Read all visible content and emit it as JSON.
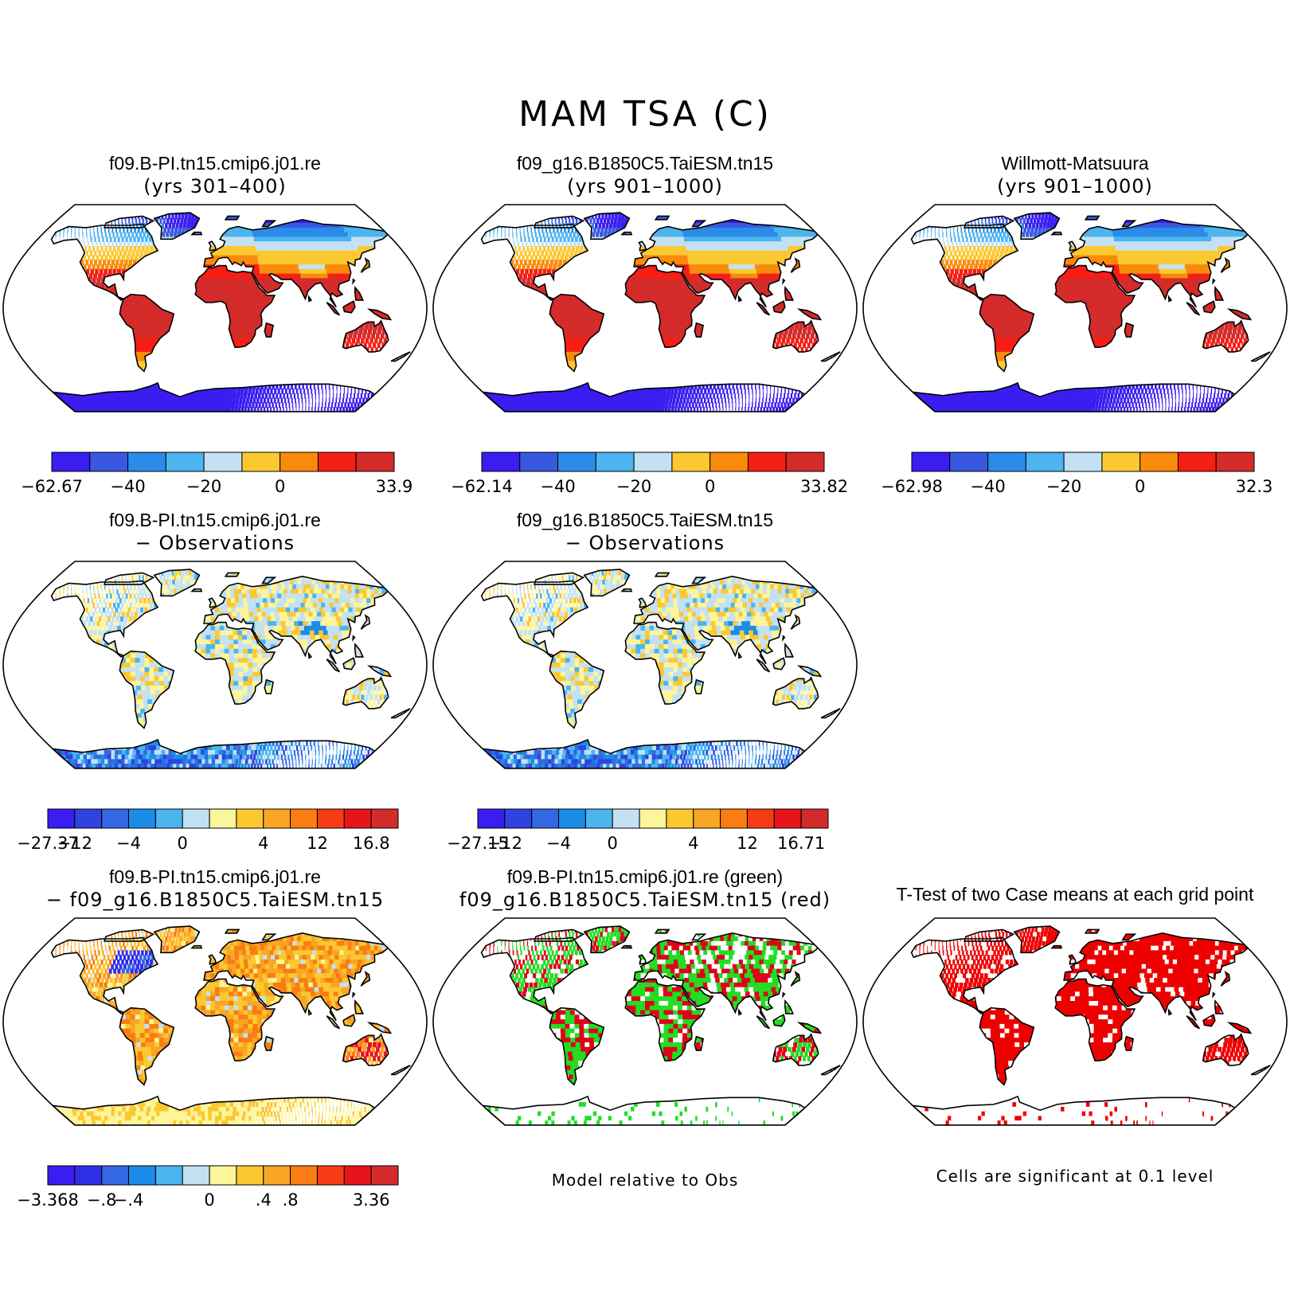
{
  "title": "MAM TSA (C)",
  "panels": [
    {
      "id": "p1",
      "title_line1": "f09.B-PI.tn15.cmip6.j01.re",
      "title_line2": "(yrs 301–400)",
      "style": "abs",
      "colorbar": {
        "colors": [
          "#3a1df0",
          "#3958e0",
          "#2c8be8",
          "#4cb4ee",
          "#c3e1f3",
          "#fbc831",
          "#f98b0c",
          "#f61f14",
          "#d42b2b"
        ],
        "labels": [
          "−62.67",
          "−40",
          "−20",
          "0",
          "33.9"
        ],
        "label_bins": [
          0,
          2,
          4,
          6,
          9
        ]
      }
    },
    {
      "id": "p2",
      "title_line1": "f09_g16.B1850C5.TaiESM.tn15",
      "title_line2": "(yrs 901–1000)",
      "style": "abs",
      "colorbar": {
        "colors": [
          "#3a1df0",
          "#3958e0",
          "#2c8be8",
          "#4cb4ee",
          "#c3e1f3",
          "#fbc831",
          "#f98b0c",
          "#f61f14",
          "#d42b2b"
        ],
        "labels": [
          "−62.14",
          "−40",
          "−20",
          "0",
          "33.82"
        ],
        "label_bins": [
          0,
          2,
          4,
          6,
          9
        ]
      }
    },
    {
      "id": "p3",
      "title_line1": "Willmott-Matsuura",
      "title_line2": "(yrs 901–1000)",
      "style": "abs",
      "colorbar": {
        "colors": [
          "#3a1df0",
          "#3958e0",
          "#2c8be8",
          "#4cb4ee",
          "#c3e1f3",
          "#fbc831",
          "#f98b0c",
          "#f61f14",
          "#d42b2b"
        ],
        "labels": [
          "−62.98",
          "−40",
          "−20",
          "0",
          "32.3"
        ],
        "label_bins": [
          0,
          2,
          4,
          6,
          9
        ]
      }
    },
    {
      "id": "p4",
      "title_line1": "f09.B-PI.tn15.cmip6.j01.re",
      "title_line2": "− Observations",
      "style": "diff",
      "colorbar": {
        "colors": [
          "#3a1df0",
          "#2f43e0",
          "#3467e2",
          "#1a8ce8",
          "#4cb4ee",
          "#c3e1f3",
          "#fdf59a",
          "#fbc831",
          "#f9a525",
          "#f97d12",
          "#f63c14",
          "#e8141c",
          "#d42b2b"
        ],
        "labels": [
          "−27.37",
          "−12",
          "−4",
          "0",
          "4",
          "12",
          "16.8"
        ],
        "label_bins": [
          0,
          1,
          3,
          5,
          8,
          10,
          12
        ]
      }
    },
    {
      "id": "p5",
      "title_line1": "f09_g16.B1850C5.TaiESM.tn15",
      "title_line2": "− Observations",
      "style": "diff",
      "colorbar": {
        "colors": [
          "#3a1df0",
          "#2f43e0",
          "#3467e2",
          "#1a8ce8",
          "#4cb4ee",
          "#c3e1f3",
          "#fdf59a",
          "#fbc831",
          "#f9a525",
          "#f97d12",
          "#f63c14",
          "#e8141c",
          "#d42b2b"
        ],
        "labels": [
          "−27.15",
          "−12",
          "−4",
          "0",
          "4",
          "12",
          "16.71"
        ],
        "label_bins": [
          0,
          1,
          3,
          5,
          8,
          10,
          12
        ]
      }
    },
    {
      "id": "p7",
      "title_line1": "f09.B-PI.tn15.cmip6.j01.re",
      "title_line2": "− f09_g16.B1850C5.TaiESM.tn15",
      "style": "modeldiff",
      "colorbar": {
        "colors": [
          "#3a1df0",
          "#2f2fe8",
          "#3467e2",
          "#1a8ce8",
          "#4cb4ee",
          "#c3e1f3",
          "#fdf59a",
          "#fbc831",
          "#f9a525",
          "#f97d12",
          "#f63c14",
          "#e8141c",
          "#d42b2b"
        ],
        "labels": [
          "−3.368",
          "−.8",
          "−.4",
          "0",
          ".4",
          ".8",
          "3.36"
        ],
        "label_bins": [
          0,
          2,
          3,
          6,
          8,
          9,
          12
        ]
      }
    },
    {
      "id": "p8",
      "title_line1": "f09.B-PI.tn15.cmip6.j01.re (green)",
      "title_line2": "f09_g16.B1850C5.TaiESM.tn15 (red)",
      "style": "greenred",
      "note": "Model relative to Obs"
    },
    {
      "id": "p9",
      "title_line1": "T-Test of two Case means at each grid point",
      "title_line2": "",
      "style": "ttest",
      "note": "Cells are significant at 0.1 level"
    }
  ]
}
